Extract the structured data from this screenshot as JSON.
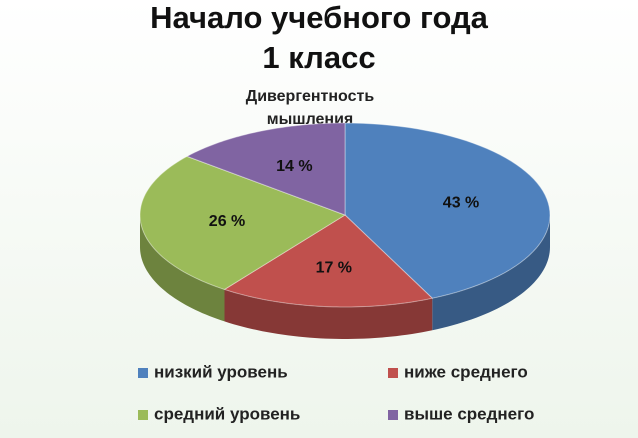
{
  "slide": {
    "title": "Начало учебного года",
    "subtitle": "1 класс"
  },
  "chart_data": {
    "type": "pie3d",
    "title": [
      "Дивергентность",
      "мышления"
    ],
    "categories": [
      "низкий уровень",
      "ниже среднего",
      "средний уровень",
      "выше среднего"
    ],
    "values": [
      43,
      17,
      26,
      14
    ],
    "value_labels": [
      "43 %",
      "17 %",
      "26 %",
      "14 %"
    ],
    "colors": [
      "#4f81bd",
      "#c0504d",
      "#9bbb59",
      "#8064a2"
    ]
  }
}
